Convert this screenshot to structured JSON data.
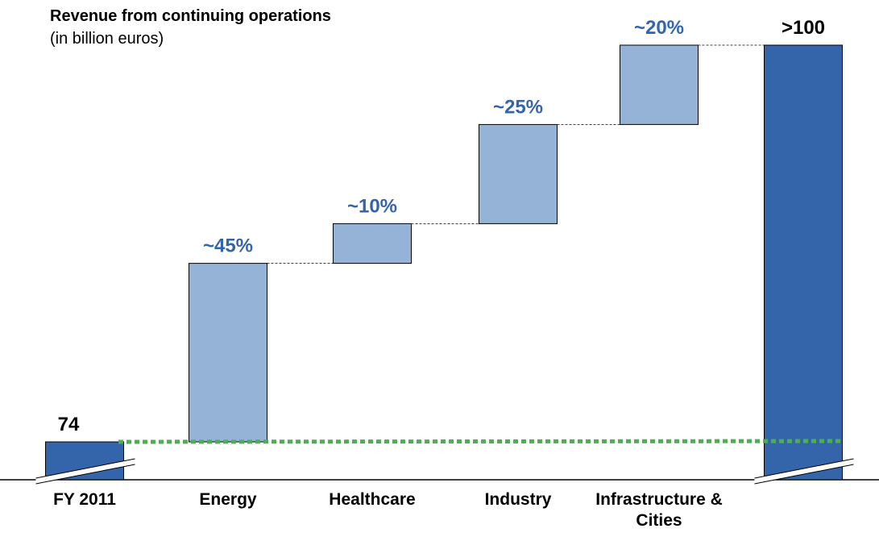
{
  "chart_data": {
    "type": "waterfall",
    "title": "Revenue from continuing operations",
    "subtitle": "(in billion euros)",
    "categories": [
      "FY 2011",
      "Energy",
      "Healthcare",
      "Industry",
      "Infrastructure & Cities",
      null
    ],
    "values": [
      74,
      45,
      10,
      25,
      20,
      100
    ],
    "value_labels": [
      "74",
      "~45%",
      "~10%",
      "~25%",
      "~20%",
      ">100"
    ],
    "color_total": "#3465aa",
    "color_increment": "#95b3d7"
  }
}
